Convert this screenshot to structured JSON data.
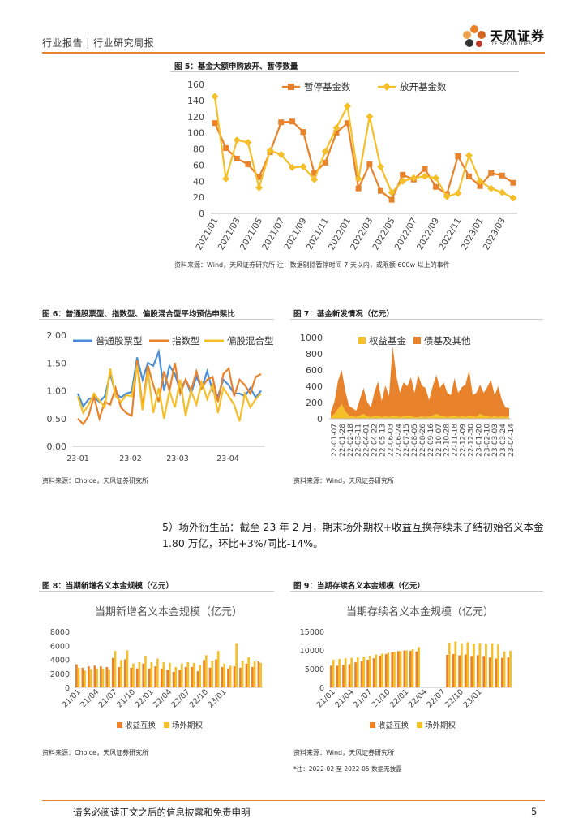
{
  "header": {
    "left": "行业报告 | 行业研究周报",
    "logo_text": "天风证券",
    "logo_sub": "TF SECURITIES"
  },
  "colors": {
    "orange": "#e8822b",
    "yellow": "#f5bf29",
    "blue": "#4a8fd6",
    "accent": "#e8822b"
  },
  "fig5": {
    "title": "图 5：基金大额申购放开、暂停数量",
    "source": "资料来源：Wind，天风证券研究所    注：数据剔除暂停时间 7 天以内，或限额 600w 以上的事件"
  },
  "fig6": {
    "title": "图 6：普通股票型、指数型、偏股混合型平均预估申赎比",
    "source": "资料来源：Choice，天风证券研究所"
  },
  "fig7": {
    "title": "图 7：基金新发情况（亿元）",
    "source": "资料来源：Wind，天风证券研究所"
  },
  "paragraph": "5）场外衍生品：截至 23 年 2 月，期末场外期权+收益互换存续未了结初始名义本金 1.80 万亿，环比+3%/同比-14%。",
  "fig8": {
    "title": "图 8：当期新增名义本金规模（亿元）",
    "source": "资料来源：Choice，天风证券研究所"
  },
  "fig9": {
    "title": "图 9：当期存续名义本金规模（亿元）",
    "source": "资料来源：Wind，天风证券研究所",
    "note": "*注：2022-02 至 2022-05 数据无披露"
  },
  "footer": {
    "disclaimer": "请务必阅读正文之后的信息披露和免责申明",
    "page": "5"
  },
  "chart_data": [
    {
      "id": "fig5",
      "type": "line",
      "title": "",
      "ylim": [
        0,
        160
      ],
      "yticks": [
        0,
        20,
        40,
        60,
        80,
        100,
        120,
        140,
        160
      ],
      "tick_labels": [
        "2021/01",
        "2021/03",
        "2021/05",
        "2021/07",
        "2021/09",
        "2021/11",
        "2022/01",
        "2022/03",
        "2022/05",
        "2022/07",
        "2022/09",
        "2022/11",
        "2023/01",
        "2023/03"
      ],
      "series": [
        {
          "name": "暂停基金数",
          "color": "#e8822b",
          "values": [
            112,
            81,
            68,
            61,
            45,
            76,
            113,
            114,
            101,
            50,
            63,
            100,
            112,
            31,
            61,
            28,
            17,
            48,
            42,
            55,
            33,
            24,
            71,
            46,
            34,
            50,
            47,
            38
          ]
        },
        {
          "name": "放开基金数",
          "color": "#f5bf29",
          "values": [
            145,
            43,
            91,
            88,
            32,
            78,
            73,
            57,
            58,
            42,
            77,
            106,
            133,
            43,
            120,
            58,
            26,
            40,
            44,
            46,
            44,
            21,
            25,
            72,
            40,
            31,
            26,
            19
          ]
        }
      ]
    },
    {
      "id": "fig6",
      "type": "line",
      "ylim": [
        0,
        2
      ],
      "yticks": [
        "0.00",
        "0.50",
        "1.00",
        "1.50",
        "2.00"
      ],
      "tick_labels": [
        "23-01",
        "23-02",
        "23-03",
        "23-04"
      ],
      "series": [
        {
          "name": "普通股票型",
          "color": "#4a8fd6",
          "values": [
            0.95,
            0.72,
            0.85,
            0.88,
            0.8,
            0.9,
            1.3,
            0.95,
            0.88,
            0.95,
            0.98,
            1.6,
            1.2,
            1.5,
            1.45,
            1.7,
            1.0,
            1.45,
            1.3,
            1.0,
            1.2,
            0.95,
            1.25,
            1.05,
            1.35,
            1.0,
            0.9,
            1.2,
            1.1,
            0.95,
            0.95,
            0.9,
            1.05,
            0.88,
            1.0
          ]
        },
        {
          "name": "指数型",
          "color": "#e8822b",
          "values": [
            0.5,
            0.4,
            0.55,
            0.9,
            0.5,
            0.8,
            0.75,
            1.05,
            0.7,
            0.6,
            0.55,
            1.55,
            0.7,
            1.45,
            1.1,
            0.8,
            1.35,
            1.0,
            1.5,
            0.95,
            1.2,
            1.0,
            1.35,
            1.05,
            1.2,
            1.25,
            0.8,
            1.3,
            1.4,
            0.9,
            1.2,
            1.1,
            0.95,
            1.25,
            1.3
          ]
        },
        {
          "name": "偏股混合型",
          "color": "#f5bf29",
          "values": [
            0.9,
            0.6,
            0.75,
            0.95,
            0.82,
            0.7,
            1.4,
            0.9,
            0.8,
            0.92,
            0.9,
            1.45,
            0.65,
            1.35,
            0.6,
            1.05,
            0.5,
            1.0,
            0.7,
            1.2,
            0.55,
            1.0,
            0.75,
            1.15,
            0.85,
            1.1,
            0.6,
            1.05,
            0.9,
            0.75,
            0.45,
            0.95,
            0.7,
            0.85,
            0.95
          ]
        }
      ]
    },
    {
      "id": "fig7",
      "type": "area",
      "ylim": [
        0,
        1000
      ],
      "yticks": [
        0,
        200,
        400,
        600,
        800,
        1000
      ],
      "tick_labels": [
        "22-01-07",
        "22-01-28",
        "22-02-18",
        "22-03-11",
        "22-04-01",
        "22-04-22",
        "22-05-13",
        "22-06-03",
        "22-06-24",
        "22-07-15",
        "22-08-05",
        "22-08-26",
        "22-09-16",
        "22-10-07",
        "22-10-28",
        "22-11-18",
        "22-12-09",
        "22-12-30",
        "23-01-20",
        "23-02-10",
        "23-03-03",
        "23-03-24",
        "23-04-14"
      ],
      "series": [
        {
          "name": "权益基金",
          "color": "#f5bf29",
          "values": [
            20,
            60,
            120,
            180,
            90,
            40,
            30,
            20,
            40,
            60,
            30,
            20,
            30,
            40,
            20,
            30,
            20,
            40,
            30,
            20,
            30,
            40,
            30,
            20,
            20,
            30,
            20,
            30,
            40,
            60,
            40,
            30,
            20,
            30,
            40,
            20,
            30,
            20,
            40,
            30,
            20,
            60,
            40,
            30,
            20,
            30,
            20,
            30,
            20,
            30
          ]
        },
        {
          "name": "债基及其他",
          "color": "#e8822b",
          "values": [
            60,
            150,
            350,
            420,
            250,
            120,
            100,
            80,
            200,
            320,
            180,
            120,
            300,
            420,
            200,
            380,
            260,
            850,
            500,
            300,
            420,
            360,
            480,
            300,
            520,
            380,
            360,
            200,
            360,
            480,
            340,
            420,
            300,
            260,
            460,
            300,
            360,
            400,
            560,
            260,
            300,
            360,
            280,
            360,
            460,
            260,
            380,
            200,
            120,
            100
          ]
        }
      ]
    },
    {
      "id": "fig8",
      "type": "bar",
      "title": "当期新增名义本金规模（亿元）",
      "ylim": [
        0,
        8000
      ],
      "yticks": [
        0,
        2000,
        4000,
        6000,
        8000
      ],
      "tick_labels": [
        "21/01",
        "21/04",
        "21/07",
        "21/10",
        "22/01",
        "22/04",
        "22/07",
        "22/10",
        "23/01"
      ],
      "series": [
        {
          "name": "收益互换",
          "color": "#e8822b",
          "values": [
            3300,
            2800,
            3000,
            3100,
            3000,
            2900,
            4200,
            2900,
            4000,
            2800,
            2700,
            3400,
            2700,
            3000,
            2700,
            2500,
            2200,
            2500,
            2900,
            2900,
            2300,
            3900,
            2800,
            4000,
            2900,
            2700,
            3000,
            2800,
            3400,
            2900,
            3700
          ]
        },
        {
          "name": "场外期权",
          "color": "#f5bf29",
          "values": [
            2800,
            2400,
            2600,
            2700,
            2700,
            2600,
            5200,
            3900,
            5300,
            3400,
            3600,
            4500,
            3600,
            4100,
            3600,
            3500,
            2900,
            3400,
            3600,
            3500,
            3200,
            4600,
            3800,
            5200,
            3400,
            3100,
            6300,
            3800,
            4300,
            3700,
            3500
          ]
        }
      ]
    },
    {
      "id": "fig9",
      "type": "bar",
      "title": "当期存续名义本金规模（亿元）",
      "ylim": [
        0,
        15000
      ],
      "yticks": [
        0,
        5000,
        10000,
        15000
      ],
      "tick_labels": [
        "21/01",
        "21/04",
        "21/07",
        "21/10",
        "22/01",
        "22/04",
        "22/07",
        "22/10",
        "23/01"
      ],
      "series": [
        {
          "name": "收益互换",
          "color": "#e8822b",
          "values": [
            5800,
            5800,
            6000,
            6200,
            6700,
            7000,
            7400,
            7800,
            8500,
            8900,
            9400,
            9700,
            9900,
            9800,
            9600,
            null,
            null,
            null,
            null,
            8700,
            8900,
            8600,
            8800,
            8400,
            8600,
            8400,
            8000,
            7700,
            7900,
            8000
          ]
        },
        {
          "name": "场外期权",
          "color": "#f5bf29",
          "values": [
            7400,
            7600,
            7800,
            7900,
            8000,
            8200,
            8500,
            8800,
            9000,
            9300,
            9500,
            9700,
            9900,
            10200,
            10800,
            null,
            null,
            null,
            null,
            12000,
            12300,
            11800,
            12100,
            11700,
            11900,
            11700,
            11800,
            11600,
            9600,
            9800
          ]
        }
      ]
    }
  ]
}
